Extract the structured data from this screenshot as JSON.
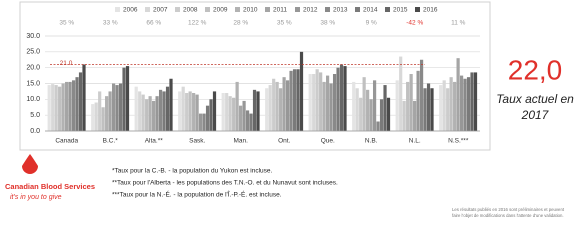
{
  "chart_data": {
    "type": "bar",
    "categories": [
      "Canada",
      "B.C.*",
      "Alta.**",
      "Sask.",
      "Man.",
      "Ont.",
      "Que.",
      "N.B.",
      "N.L.",
      "N.S.***"
    ],
    "series": [
      {
        "name": "2006",
        "color": "#e4e4e4",
        "values": [
          14.5,
          8.5,
          14,
          12.5,
          12,
          13.5,
          18,
          15.5,
          16,
          14.5
        ]
      },
      {
        "name": "2007",
        "color": "#d8d8d8",
        "values": [
          14.8,
          9,
          12.5,
          14,
          12,
          14.5,
          18,
          13.5,
          23.5,
          16
        ]
      },
      {
        "name": "2008",
        "color": "#cccccc",
        "values": [
          14.5,
          12.5,
          11.5,
          12,
          11,
          16.5,
          19.5,
          10.5,
          9.5,
          13.5
        ]
      },
      {
        "name": "2009",
        "color": "#c0c0c0",
        "values": [
          14,
          7.5,
          10,
          12.5,
          10.5,
          15.5,
          18.5,
          17,
          15.5,
          17
        ]
      },
      {
        "name": "2010",
        "color": "#b2b2b2",
        "values": [
          15,
          11,
          11,
          12,
          15.5,
          13.5,
          15.5,
          13,
          18,
          15.5
        ]
      },
      {
        "name": "2011",
        "color": "#a5a5a5",
        "values": [
          15.5,
          12.5,
          9.5,
          11.5,
          8,
          17,
          17.5,
          10,
          9.5,
          23
        ]
      },
      {
        "name": "2012",
        "color": "#979797",
        "values": [
          15.5,
          15,
          11,
          5.5,
          9.5,
          16,
          15,
          16,
          19,
          17.5
        ]
      },
      {
        "name": "2013",
        "color": "#898989",
        "values": [
          16,
          14.5,
          13,
          5.5,
          6.5,
          19,
          18,
          3,
          22.5,
          16.5
        ]
      },
      {
        "name": "2014",
        "color": "#7a7a7a",
        "values": [
          17,
          15,
          12.5,
          8,
          5.5,
          19.5,
          20,
          10,
          13.5,
          17
        ]
      },
      {
        "name": "2015",
        "color": "#666666",
        "values": [
          18.5,
          20,
          14,
          10,
          13,
          19.5,
          21,
          14.5,
          15,
          18.5
        ]
      },
      {
        "name": "2016",
        "color": "#4a4a4a",
        "values": [
          21,
          20.5,
          16.5,
          12.5,
          12.5,
          25,
          20.5,
          10.5,
          13.5,
          18.5
        ]
      }
    ],
    "growth_labels": [
      "35 %",
      "33 %",
      "66 %",
      "122 %",
      "28 %",
      "35 %",
      "38 %",
      "9 %",
      "-42 %",
      "11 %"
    ],
    "growth_label_colors": [
      "#999999",
      "#999999",
      "#999999",
      "#999999",
      "#999999",
      "#999999",
      "#999999",
      "#999999",
      "#e0302a",
      "#999999"
    ],
    "reference_line": {
      "value": 21,
      "label": "21.0",
      "color": "#c0392b"
    },
    "ylim": [
      0,
      30
    ],
    "yticks": [
      {
        "value": 0,
        "label": "0.0"
      },
      {
        "value": 5,
        "label": "5.0"
      },
      {
        "value": 10,
        "label": "10.0"
      },
      {
        "value": 15,
        "label": "15.0"
      },
      {
        "value": 20,
        "label": "20.0"
      },
      {
        "value": 25,
        "label": "25.0"
      },
      {
        "value": 30,
        "label": "30.0"
      }
    ],
    "grid": true
  },
  "current_rate": {
    "value": "22,0",
    "label_line1": "Taux actuel en",
    "label_line2": "2017"
  },
  "footnotes": [
    "*Taux pour la C.-B. - la population du Yukon est incluse.",
    "**Taux pour l'Alberta - les populations des T.N.-O. et du Nunavut sont incluses.",
    "***Taux pour la N.-É. - la population de l'Î.-P.-É. est incluse."
  ],
  "note": [
    "Les résultats publiés en 2016 sont préliminaires et peuvent",
    "faire l'objet de modifications dans l'attente d'une validation."
  ],
  "logo": {
    "name": "Canadian Blood Services",
    "tagline": "it's in you to give"
  }
}
